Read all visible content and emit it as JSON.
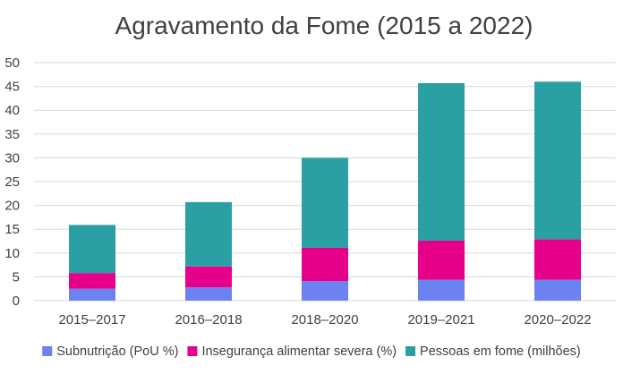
{
  "chart_data": {
    "type": "bar",
    "stacked": true,
    "title": "Agravamento da Fome (2015 a 2022)",
    "categories": [
      "2015–2017",
      "2016–2018",
      "2018–2020",
      "2019–2021",
      "2020–2022"
    ],
    "series": [
      {
        "name": "Subnutrição (PoU %)",
        "color": "#6b82f0",
        "values": [
          2.5,
          2.8,
          4.1,
          4.4,
          4.4
        ]
      },
      {
        "name": "Insegurança alimentar severa (%)",
        "color": "#e6008a",
        "values": [
          3.3,
          4.4,
          7.0,
          8.2,
          8.5
        ]
      },
      {
        "name": "Pessoas em fome (milhões)",
        "color": "#2aa0a4",
        "values": [
          10.1,
          13.5,
          18.9,
          33.1,
          33.1
        ]
      }
    ],
    "ylim": [
      0,
      50
    ],
    "yticks": [
      0,
      5,
      10,
      15,
      20,
      25,
      30,
      35,
      40,
      45,
      50
    ],
    "grid": true,
    "legend_position": "bottom",
    "xlabel": "",
    "ylabel": ""
  }
}
